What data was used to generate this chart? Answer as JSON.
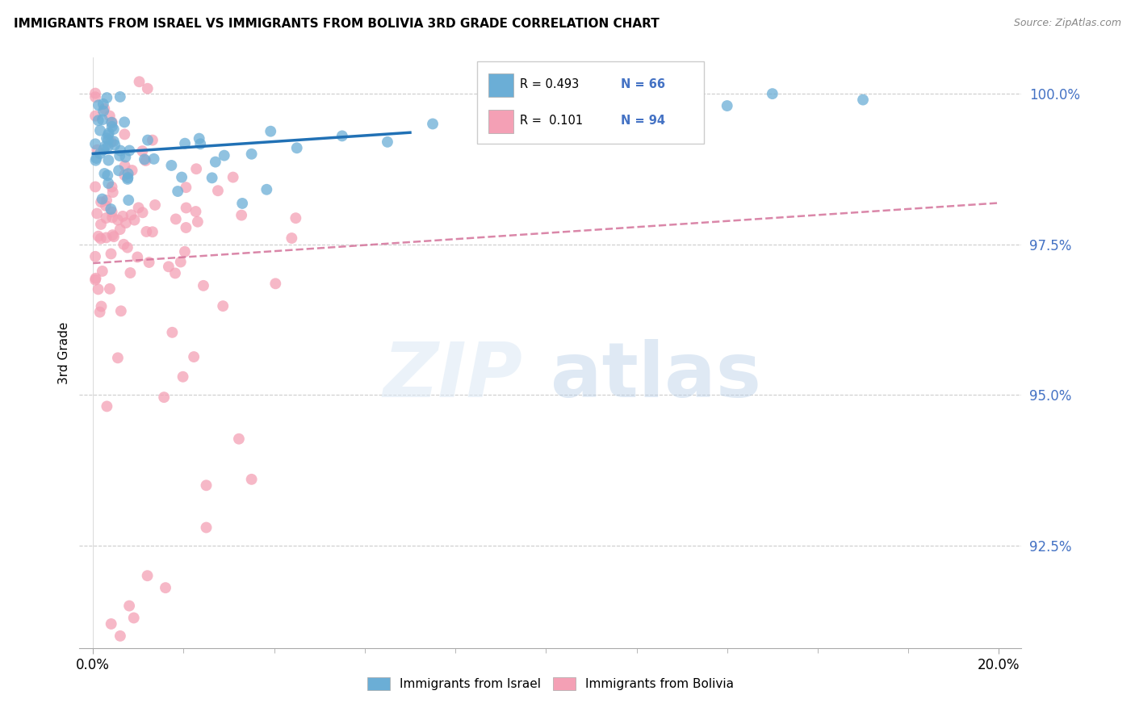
{
  "title": "IMMIGRANTS FROM ISRAEL VS IMMIGRANTS FROM BOLIVIA 3RD GRADE CORRELATION CHART",
  "source": "Source: ZipAtlas.com",
  "ylabel": "3rd Grade",
  "legend_r_israel": "R = 0.493",
  "legend_n_israel": "N = 66",
  "legend_r_bolivia": "R =  0.101",
  "legend_n_bolivia": "N = 94",
  "color_israel": "#6baed6",
  "color_bolivia": "#f4a0b5",
  "trendline_israel_color": "#2171b5",
  "trendline_bolivia_color": "#d4729a",
  "background_color": "#ffffff",
  "watermark_zip": "ZIP",
  "watermark_atlas": "atlas",
  "ylim": [
    90.8,
    100.6
  ],
  "xlim": [
    -0.3,
    20.5
  ],
  "ytick_vals": [
    92.5,
    95.0,
    97.5,
    100.0
  ],
  "ytick_labels": [
    "92.5%",
    "95.0%",
    "97.5%",
    "100.0%"
  ]
}
